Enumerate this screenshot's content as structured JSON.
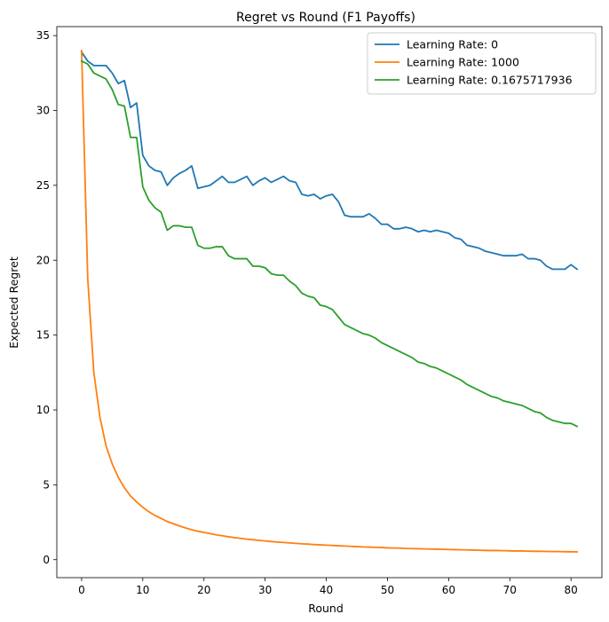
{
  "chart_data": {
    "type": "line",
    "title": "Regret vs Round (F1 Payoffs)",
    "xlabel": "Round",
    "ylabel": "Expected Regret",
    "xlim": [
      -4.05,
      85.05
    ],
    "ylim": [
      -1.2,
      35.6
    ],
    "xticks": [
      0,
      10,
      20,
      30,
      40,
      50,
      60,
      70,
      80
    ],
    "yticks": [
      0,
      5,
      10,
      15,
      20,
      25,
      30,
      35
    ],
    "grid": false,
    "legend_position": "top-right",
    "series": [
      {
        "name": "Learning Rate: 0",
        "color": "#1f77b4",
        "x": [
          0,
          1,
          2,
          3,
          4,
          5,
          6,
          7,
          8,
          9,
          10,
          11,
          12,
          13,
          14,
          15,
          16,
          17,
          18,
          19,
          20,
          21,
          22,
          23,
          24,
          25,
          26,
          27,
          28,
          29,
          30,
          31,
          32,
          33,
          34,
          35,
          36,
          37,
          38,
          39,
          40,
          41,
          42,
          43,
          44,
          45,
          46,
          47,
          48,
          49,
          50,
          51,
          52,
          53,
          54,
          55,
          56,
          57,
          58,
          59,
          60,
          61,
          62,
          63,
          64,
          65,
          66,
          67,
          68,
          69,
          70,
          71,
          72,
          73,
          74,
          75,
          76,
          77,
          78,
          79,
          80,
          81
        ],
        "y": [
          33.9,
          33.3,
          33.0,
          33.0,
          33.0,
          32.5,
          31.8,
          32.0,
          30.2,
          30.5,
          27.0,
          26.3,
          26.0,
          25.9,
          25.0,
          25.5,
          25.8,
          26.0,
          26.3,
          24.8,
          24.9,
          25.0,
          25.3,
          25.6,
          25.2,
          25.2,
          25.4,
          25.6,
          25.0,
          25.3,
          25.5,
          25.2,
          25.4,
          25.6,
          25.3,
          25.2,
          24.4,
          24.3,
          24.4,
          24.1,
          24.3,
          24.4,
          23.9,
          23.0,
          22.9,
          22.9,
          22.9,
          23.1,
          22.8,
          22.4,
          22.4,
          22.1,
          22.1,
          22.2,
          22.1,
          21.9,
          22.0,
          21.9,
          22.0,
          21.9,
          21.8,
          21.5,
          21.4,
          21.0,
          20.9,
          20.8,
          20.6,
          20.5,
          20.4,
          20.3,
          20.3,
          20.3,
          20.4,
          20.1,
          20.1,
          20.0,
          19.6,
          19.4,
          19.4,
          19.4,
          19.7,
          19.4
        ]
      },
      {
        "name": "Learning Rate: 1000",
        "color": "#ff7f0e",
        "x": [
          0,
          1,
          2,
          3,
          4,
          5,
          6,
          7,
          8,
          9,
          10,
          11,
          12,
          13,
          14,
          15,
          16,
          17,
          18,
          19,
          20,
          21,
          22,
          23,
          24,
          25,
          26,
          27,
          28,
          29,
          30,
          31,
          32,
          33,
          34,
          35,
          36,
          37,
          38,
          39,
          40,
          41,
          42,
          43,
          44,
          45,
          46,
          47,
          48,
          49,
          50,
          51,
          52,
          53,
          54,
          55,
          56,
          57,
          58,
          59,
          60,
          61,
          62,
          63,
          64,
          65,
          66,
          67,
          68,
          69,
          70,
          71,
          72,
          73,
          74,
          75,
          76,
          77,
          78,
          79,
          80,
          81
        ],
        "y": [
          34.0,
          18.8,
          12.5,
          9.5,
          7.6,
          6.4,
          5.5,
          4.8,
          4.25,
          3.85,
          3.5,
          3.2,
          2.95,
          2.75,
          2.55,
          2.4,
          2.25,
          2.12,
          2.0,
          1.9,
          1.82,
          1.74,
          1.66,
          1.6,
          1.53,
          1.47,
          1.42,
          1.37,
          1.33,
          1.29,
          1.25,
          1.21,
          1.18,
          1.15,
          1.12,
          1.09,
          1.06,
          1.04,
          1.01,
          0.99,
          0.97,
          0.95,
          0.93,
          0.91,
          0.89,
          0.87,
          0.85,
          0.84,
          0.82,
          0.81,
          0.79,
          0.78,
          0.77,
          0.75,
          0.74,
          0.73,
          0.72,
          0.71,
          0.7,
          0.69,
          0.68,
          0.67,
          0.66,
          0.65,
          0.64,
          0.63,
          0.62,
          0.61,
          0.61,
          0.6,
          0.59,
          0.58,
          0.58,
          0.57,
          0.56,
          0.56,
          0.55,
          0.54,
          0.54,
          0.53,
          0.53,
          0.52
        ]
      },
      {
        "name": "Learning Rate: 0.1675717936",
        "color": "#2ca02c",
        "x": [
          0,
          1,
          2,
          3,
          4,
          5,
          6,
          7,
          8,
          9,
          10,
          11,
          12,
          13,
          14,
          15,
          16,
          17,
          18,
          19,
          20,
          21,
          22,
          23,
          24,
          25,
          26,
          27,
          28,
          29,
          30,
          31,
          32,
          33,
          34,
          35,
          36,
          37,
          38,
          39,
          40,
          41,
          42,
          43,
          44,
          45,
          46,
          47,
          48,
          49,
          50,
          51,
          52,
          53,
          54,
          55,
          56,
          57,
          58,
          59,
          60,
          61,
          62,
          63,
          64,
          65,
          66,
          67,
          68,
          69,
          70,
          71,
          72,
          73,
          74,
          75,
          76,
          77,
          78,
          79,
          80,
          81
        ],
        "y": [
          33.3,
          33.1,
          32.5,
          32.3,
          32.1,
          31.4,
          30.4,
          30.3,
          28.2,
          28.2,
          24.9,
          24.0,
          23.5,
          23.2,
          22.0,
          22.3,
          22.3,
          22.2,
          22.2,
          21.0,
          20.8,
          20.8,
          20.9,
          20.9,
          20.3,
          20.1,
          20.1,
          20.1,
          19.6,
          19.6,
          19.5,
          19.1,
          19.0,
          19.0,
          18.6,
          18.3,
          17.8,
          17.6,
          17.5,
          17.0,
          16.9,
          16.7,
          16.2,
          15.7,
          15.5,
          15.3,
          15.1,
          15.0,
          14.8,
          14.5,
          14.3,
          14.1,
          13.9,
          13.7,
          13.5,
          13.2,
          13.1,
          12.9,
          12.8,
          12.6,
          12.4,
          12.2,
          12.0,
          11.7,
          11.5,
          11.3,
          11.1,
          10.9,
          10.8,
          10.6,
          10.5,
          10.4,
          10.3,
          10.1,
          9.9,
          9.8,
          9.5,
          9.3,
          9.2,
          9.1,
          9.1,
          8.9
        ]
      }
    ]
  }
}
